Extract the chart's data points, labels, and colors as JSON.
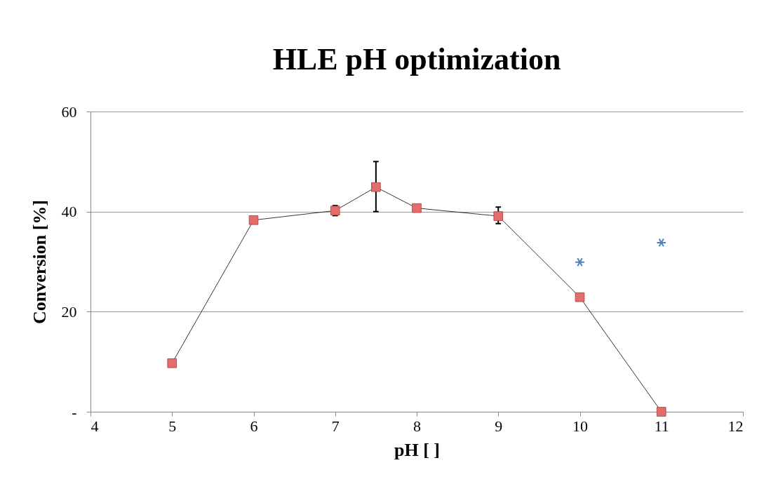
{
  "chart_data": {
    "type": "line",
    "title": "HLE pH optimization",
    "xlabel": "pH [ ]",
    "ylabel": "Conversion [%]",
    "x": [
      5,
      6,
      7,
      7.5,
      8,
      9,
      10,
      11
    ],
    "series": [
      {
        "color": "#e46c6a",
        "marker": "square",
        "line_style": "solid",
        "values": [
          9.7,
          38.3,
          40.2,
          44.9,
          40.7,
          39.1,
          22.9,
          0
        ],
        "errors": [
          null,
          null,
          [
            39.2,
            41.2
          ],
          [
            40,
            50
          ],
          null,
          [
            37.6,
            40.9
          ],
          null,
          null
        ]
      },
      {
        "type": "scatter",
        "color": "#4f81bd",
        "marker": "cross",
        "x": [
          10,
          11
        ],
        "values": [
          29.9,
          33.8
        ]
      }
    ],
    "xlim": [
      4,
      12
    ],
    "xticks": [
      4,
      5,
      6,
      7,
      8,
      9,
      10,
      11,
      12
    ],
    "ylim": [
      0,
      60
    ],
    "yticks": [
      {
        "value": 0,
        "label": "-"
      },
      20,
      40,
      60
    ],
    "grid": "y"
  }
}
